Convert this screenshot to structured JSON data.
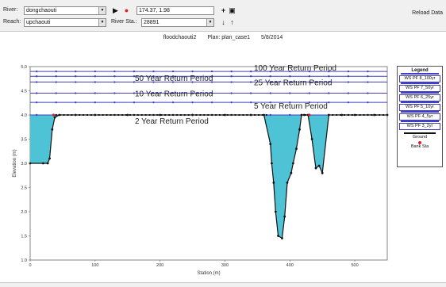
{
  "toolbar": {
    "river_label": "River:",
    "river_value": "dongchaouti",
    "reach_label": "Reach:",
    "reach_value": "upchaouti",
    "coords": "174.37, 1.98",
    "river_sta_label": "River Sta.:",
    "river_sta_value": "28891",
    "reload_label": "Reload Data"
  },
  "plot": {
    "name": "floodchaouti2",
    "plan": "Plan: plan_case1",
    "date": "5/8/2014"
  },
  "return_periods": [
    {
      "label": "100 Year Return Period",
      "elevation": 4.9
    },
    {
      "label": "50 Year Return Period",
      "elevation": 4.8
    },
    {
      "label": "25 Year Return Period",
      "elevation": 4.68
    },
    {
      "label": "10 Year Return Period",
      "elevation": 4.45
    },
    {
      "label": "5 Year Return Period",
      "elevation": 4.26
    },
    {
      "label": "2 Year Return Period",
      "elevation": 4.0
    }
  ],
  "legend": {
    "title": "Legend",
    "items": [
      "WS PF 8_100yr",
      "WS PF 7_50yr",
      "WS PF 6_25yr",
      "WS PF 5_10yr",
      "WS PF 4_5yr",
      "WS PF 3_2yr"
    ],
    "ground": "Ground",
    "bank": "Bank Sta"
  },
  "colors": {
    "water": "#4ec3d6",
    "ws_line": "#4040c0",
    "ground": "#111111",
    "bank": "#e02020"
  },
  "chart_data": {
    "type": "line",
    "xlabel": "Station (m)",
    "ylabel": "Elevation (m)",
    "xlim": [
      0,
      550
    ],
    "ylim": [
      1.0,
      5.0
    ],
    "x_ticks": [
      0,
      100,
      200,
      300,
      400,
      500
    ],
    "y_ticks": [
      1.0,
      1.5,
      2.0,
      2.5,
      3.0,
      3.5,
      4.0,
      4.5,
      5.0
    ],
    "ground": {
      "x": [
        0,
        20,
        27,
        30,
        34,
        38,
        45,
        70,
        100,
        150,
        200,
        250,
        300,
        340,
        360,
        370,
        372,
        375,
        378,
        382,
        388,
        392,
        396,
        402,
        405,
        410,
        415,
        418,
        422,
        428,
        434,
        440,
        445,
        450,
        460,
        480,
        500,
        530,
        550
      ],
      "y": [
        3.0,
        3.0,
        3.0,
        3.1,
        3.7,
        3.95,
        4.0,
        4.0,
        4.0,
        4.0,
        4.0,
        4.0,
        4.0,
        4.0,
        4.0,
        3.4,
        3.0,
        2.6,
        2.0,
        1.5,
        1.45,
        1.9,
        2.6,
        2.8,
        3.0,
        3.3,
        3.7,
        4.0,
        4.0,
        4.0,
        3.5,
        2.9,
        2.95,
        2.8,
        4.0,
        4.0,
        4.0,
        4.0,
        4.0
      ]
    },
    "bank_stations": [
      36,
      430
    ]
  }
}
